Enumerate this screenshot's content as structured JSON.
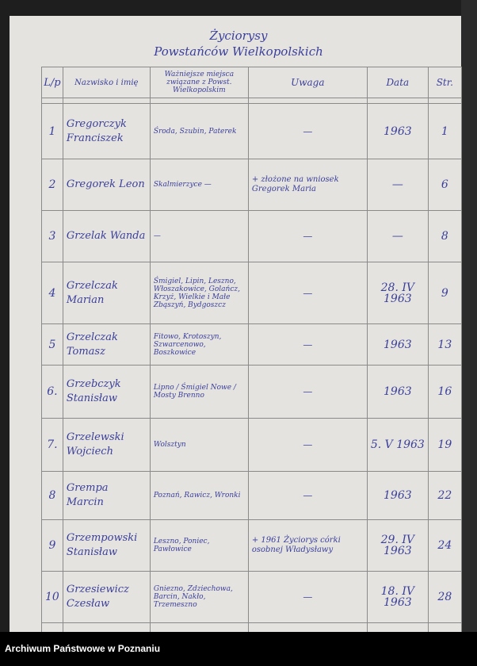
{
  "title_line1": "Życiorysy",
  "title_line2": "Powstańców Wielkopolskich",
  "columns": {
    "lp": "L/p",
    "name": "Nazwisko i imię",
    "places": "Ważniejsze miejsca związane z Powst. Wielkopolskim",
    "remarks": "Uwaga",
    "date": "Data",
    "page": "Str."
  },
  "rows": [
    {
      "lp": "1",
      "name": "Gregorczyk Franciszek",
      "places": "Środa, Szubin, Paterek",
      "remarks": "—",
      "date": "1963",
      "page": "1"
    },
    {
      "lp": "2",
      "name": "Gregorek Leon",
      "places": "Skalmierzyce —",
      "remarks": "+ złożone na wniosek Gregorek Maria",
      "date": "—",
      "page": "6"
    },
    {
      "lp": "3",
      "name": "Grzelak Wanda",
      "places": "—",
      "remarks": "—",
      "date": "—",
      "page": "8"
    },
    {
      "lp": "4",
      "name": "Grzelczak Marian",
      "places": "Śmigiel, Lipin, Leszno, Włoszakowice, Golańcz, Krzyż, Wielkie i Małe Zbąszyń, Bydgoszcz",
      "remarks": "—",
      "date": "28. IV 1963",
      "page": "9"
    },
    {
      "lp": "5",
      "name": "Grzelczak Tomasz",
      "places": "Fitowo, Krotoszyn, Szwarcenowo, Boszkowice",
      "remarks": "—",
      "date": "1963",
      "page": "13"
    },
    {
      "lp": "6.",
      "name": "Grzebczyk Stanisław",
      "places": "Lipno / Śmigiel Nowe / Mosty Brenno",
      "remarks": "—",
      "date": "1963",
      "page": "16"
    },
    {
      "lp": "7.",
      "name": "Grzelewski Wojciech",
      "places": "Wolsztyn",
      "remarks": "—",
      "date": "5. V 1963",
      "page": "19"
    },
    {
      "lp": "8",
      "name": "Grempa Marcin",
      "places": "Poznań, Rawicz, Wronki",
      "remarks": "—",
      "date": "1963",
      "page": "22"
    },
    {
      "lp": "9",
      "name": "Grzempowski Stanisław",
      "places": "Leszno, Poniec, Pawłowice",
      "remarks": "+ 1961 Życiorys córki osobnej Władysławy",
      "date": "29. IV 1963",
      "page": "24"
    },
    {
      "lp": "10",
      "name": "Grzesiewicz Czesław",
      "places": "Gniezno, Zdziechowa, Barcin, Nakło, Trzemeszno",
      "remarks": "—",
      "date": "18. IV 1963",
      "page": "28"
    }
  ],
  "footer": "Archiwum Państwowe w Poznaniu"
}
